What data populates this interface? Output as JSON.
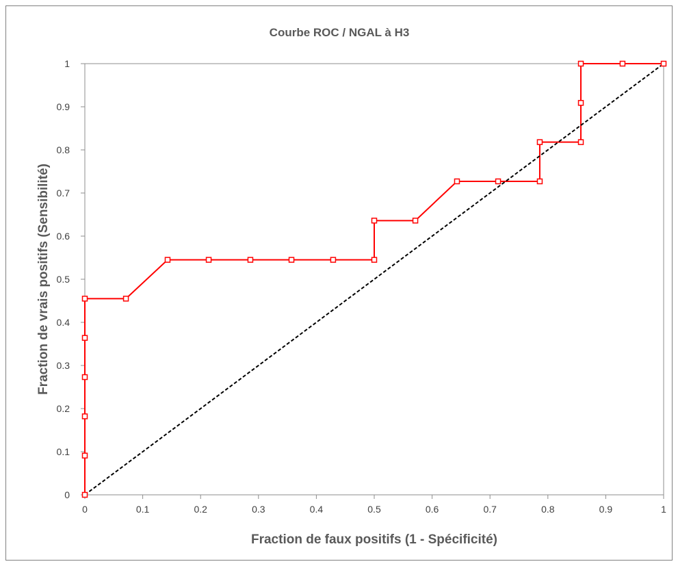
{
  "chart_data": {
    "type": "line",
    "title": "Courbe ROC / NGAL à H3",
    "xlabel": "Fraction de faux positifs (1 - Spécificité)",
    "ylabel": "Fraction de vrais positifs (Sensibilité)",
    "xlim": [
      0,
      1
    ],
    "ylim": [
      0,
      1
    ],
    "x_ticks": [
      "0",
      "0.1",
      "0.2",
      "0.3",
      "0.4",
      "0.5",
      "0.6",
      "0.7",
      "0.8",
      "0.9",
      "1"
    ],
    "y_ticks": [
      "0",
      "0.1",
      "0.2",
      "0.3",
      "0.4",
      "0.5",
      "0.6",
      "0.7",
      "0.8",
      "0.9",
      "1"
    ],
    "grid": false,
    "legend": "none",
    "series": [
      {
        "color": "#ff0000",
        "style": "solid",
        "marker": "square",
        "points": [
          {
            "x": 0,
            "y": 0
          },
          {
            "x": 0,
            "y": 0.091
          },
          {
            "x": 0,
            "y": 0.182
          },
          {
            "x": 0,
            "y": 0.273
          },
          {
            "x": 0,
            "y": 0.364
          },
          {
            "x": 0,
            "y": 0.455
          },
          {
            "x": 0.071,
            "y": 0.455
          },
          {
            "x": 0.143,
            "y": 0.545
          },
          {
            "x": 0.214,
            "y": 0.545
          },
          {
            "x": 0.286,
            "y": 0.545
          },
          {
            "x": 0.357,
            "y": 0.545
          },
          {
            "x": 0.429,
            "y": 0.545
          },
          {
            "x": 0.5,
            "y": 0.545
          },
          {
            "x": 0.5,
            "y": 0.636
          },
          {
            "x": 0.571,
            "y": 0.636
          },
          {
            "x": 0.643,
            "y": 0.727
          },
          {
            "x": 0.714,
            "y": 0.727
          },
          {
            "x": 0.786,
            "y": 0.727
          },
          {
            "x": 0.786,
            "y": 0.818
          },
          {
            "x": 0.857,
            "y": 0.818
          },
          {
            "x": 0.857,
            "y": 0.909
          },
          {
            "x": 0.857,
            "y": 1
          },
          {
            "x": 0.929,
            "y": 1
          },
          {
            "x": 1,
            "y": 1
          }
        ]
      },
      {
        "color": "#000000",
        "style": "dashed",
        "marker": "none",
        "points": [
          {
            "x": 0,
            "y": 0
          },
          {
            "x": 1,
            "y": 1
          }
        ]
      }
    ]
  }
}
